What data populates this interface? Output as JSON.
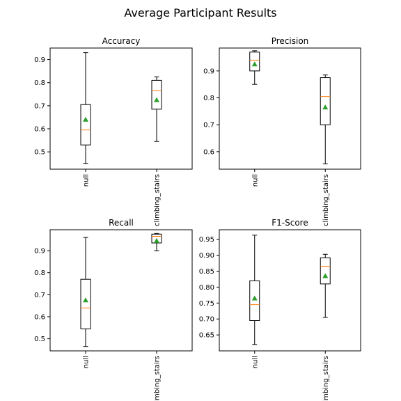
{
  "figure_title": "Average Participant Results",
  "chart_data": [
    {
      "type": "box",
      "title": "Accuracy",
      "categories": [
        "null",
        "climbing_stairs"
      ],
      "ylim": [
        0.425,
        0.95
      ],
      "yticks": [
        "0.5",
        "0.6",
        "0.7",
        "0.8",
        "0.9"
      ],
      "grid": false,
      "series": [
        {
          "category": "null",
          "whislo": 0.45,
          "q1": 0.53,
          "median": 0.595,
          "q3": 0.705,
          "whishi": 0.93,
          "mean": 0.64
        },
        {
          "category": "climbing_stairs",
          "whislo": 0.545,
          "q1": 0.685,
          "median": 0.765,
          "q3": 0.81,
          "whishi": 0.825,
          "mean": 0.725
        }
      ]
    },
    {
      "type": "box",
      "title": "Precision",
      "categories": [
        "null",
        "climbing_stairs"
      ],
      "ylim": [
        0.535,
        0.985
      ],
      "yticks": [
        "0.6",
        "0.7",
        "0.8",
        "0.9"
      ],
      "grid": false,
      "series": [
        {
          "category": "null",
          "whislo": 0.85,
          "q1": 0.9,
          "median": 0.94,
          "q3": 0.97,
          "whishi": 0.975,
          "mean": 0.925
        },
        {
          "category": "climbing_stairs",
          "whislo": 0.555,
          "q1": 0.7,
          "median": 0.805,
          "q3": 0.875,
          "whishi": 0.885,
          "mean": 0.765
        }
      ]
    },
    {
      "type": "box",
      "title": "Recall",
      "categories": [
        "null",
        "climbing_stairs"
      ],
      "ylim": [
        0.445,
        0.995
      ],
      "yticks": [
        "0.5",
        "0.6",
        "0.7",
        "0.8",
        "0.9"
      ],
      "grid": false,
      "series": [
        {
          "category": "null",
          "whislo": 0.465,
          "q1": 0.545,
          "median": 0.64,
          "q3": 0.77,
          "whishi": 0.96,
          "mean": 0.675
        },
        {
          "category": "climbing_stairs",
          "whislo": 0.9,
          "q1": 0.935,
          "median": 0.965,
          "q3": 0.975,
          "whishi": 0.978,
          "mean": 0.945
        }
      ]
    },
    {
      "type": "box",
      "title": "F1-Score",
      "categories": [
        "null",
        "climbing_stairs"
      ],
      "ylim": [
        0.6,
        0.98
      ],
      "yticks": [
        "0.65",
        "0.70",
        "0.75",
        "0.80",
        "0.85",
        "0.90",
        "0.95"
      ],
      "grid": false,
      "series": [
        {
          "category": "null",
          "whislo": 0.62,
          "q1": 0.695,
          "median": 0.745,
          "q3": 0.82,
          "whishi": 0.963,
          "mean": 0.765
        },
        {
          "category": "climbing_stairs",
          "whislo": 0.705,
          "q1": 0.81,
          "median": 0.865,
          "q3": 0.892,
          "whishi": 0.903,
          "mean": 0.835
        }
      ]
    }
  ],
  "colors": {
    "median_line": "#ff7f0e",
    "mean_marker": "#2ca02c",
    "box": "#000000",
    "background": "#ffffff"
  }
}
